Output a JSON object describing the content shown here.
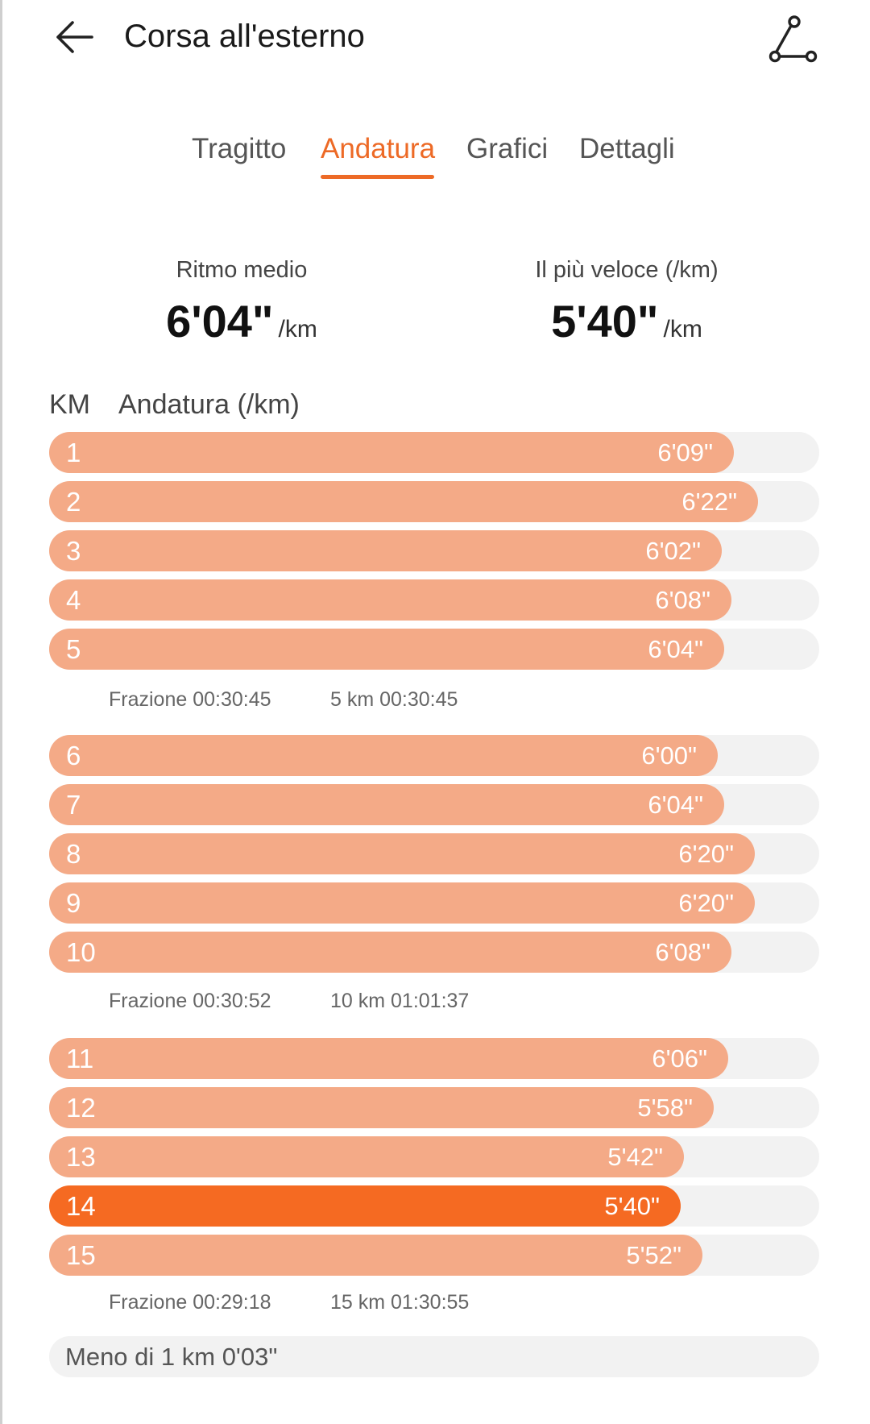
{
  "header": {
    "title": "Corsa all'esterno",
    "back_icon": "arrow-left-icon",
    "route_icon": "route-icon"
  },
  "tabs": [
    "Tragitto",
    "Andatura",
    "Grafici",
    "Dettagli"
  ],
  "active_tab": "Andatura",
  "summary": {
    "avg_label": "Ritmo medio",
    "avg_value": "6'04\"",
    "avg_unit": "/km",
    "fastest_label": "Il più veloce (/km)",
    "fastest_value": "5'40\"",
    "fastest_unit": "/km"
  },
  "table_header": {
    "km": "KM",
    "pace": "Andatura (/km)"
  },
  "rows": [
    {
      "km": "1",
      "pace": "6'09\"",
      "fill": 0.889
    },
    {
      "km": "2",
      "pace": "6'22\"",
      "fill": 0.921
    },
    {
      "km": "3",
      "pace": "6'02\"",
      "fill": 0.873
    },
    {
      "km": "4",
      "pace": "6'08\"",
      "fill": 0.886
    },
    {
      "km": "5",
      "pace": "6'04\"",
      "fill": 0.877
    },
    {
      "km": "6",
      "pace": "6'00\"",
      "fill": 0.868
    },
    {
      "km": "7",
      "pace": "6'04\"",
      "fill": 0.877
    },
    {
      "km": "8",
      "pace": "6'20\"",
      "fill": 0.916
    },
    {
      "km": "9",
      "pace": "6'20\"",
      "fill": 0.916
    },
    {
      "km": "10",
      "pace": "6'08\"",
      "fill": 0.886
    },
    {
      "km": "11",
      "pace": "6'06\"",
      "fill": 0.882
    },
    {
      "km": "12",
      "pace": "5'58\"",
      "fill": 0.863
    },
    {
      "km": "13",
      "pace": "5'42\"",
      "fill": 0.824
    },
    {
      "km": "14",
      "pace": "5'40\"",
      "fill": 0.82,
      "fastest": true
    },
    {
      "km": "15",
      "pace": "5'52\"",
      "fill": 0.848
    }
  ],
  "splits": [
    {
      "fraction": "Frazione 00:30:45",
      "cumulative": "5 km 00:30:45"
    },
    {
      "fraction": "Frazione 00:30:52",
      "cumulative": "10 km 01:01:37"
    },
    {
      "fraction": "Frazione 00:29:18",
      "cumulative": "15 km 01:30:55"
    }
  ],
  "less_than_km": "Meno di 1 km 0'03\"",
  "colors": {
    "accent": "#ed6a26",
    "bar": "#f4aa87",
    "bar_fastest": "#f56a22",
    "track": "#f2f2f2"
  }
}
